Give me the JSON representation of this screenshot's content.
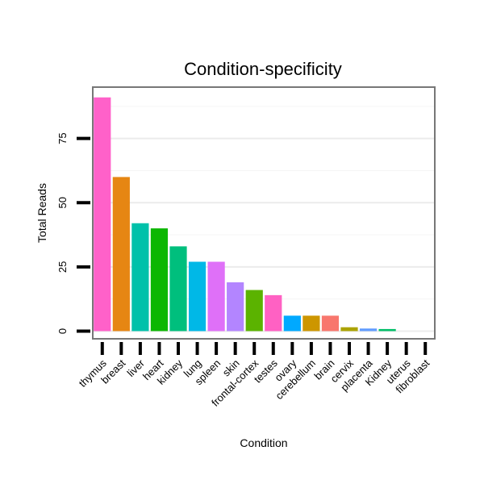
{
  "chart_data": {
    "type": "bar",
    "title": "Condition-specificity",
    "xlabel": "Condition",
    "ylabel": "Total Reads",
    "categories": [
      "thymus",
      "breast",
      "liver",
      "heart",
      "kidney",
      "lung",
      "spleen",
      "skin",
      "frontal-cortex",
      "testes",
      "ovary",
      "cerebellum",
      "brain",
      "cervix",
      "placenta",
      "Kidney",
      "uterus",
      "fibroblast"
    ],
    "values": [
      91,
      60,
      42,
      40,
      33,
      27,
      27,
      19,
      16,
      14,
      6,
      6,
      6,
      1.5,
      1,
      0.8,
      0,
      0
    ],
    "colors": [
      "#FF61C9",
      "#E68613",
      "#00C1AA",
      "#0CB702",
      "#00BF7D",
      "#00B8E7",
      "#DF70F8",
      "#B385FF",
      "#5BB300",
      "#FF61C3",
      "#00A9FF",
      "#CD9600",
      "#F8766D",
      "#ABA300",
      "#619CFF",
      "#00BE67",
      "#8494FF",
      "#ED68ED"
    ],
    "yticks": [
      0,
      25,
      50,
      75
    ],
    "ylim": [
      -3,
      95
    ],
    "grid": true
  }
}
